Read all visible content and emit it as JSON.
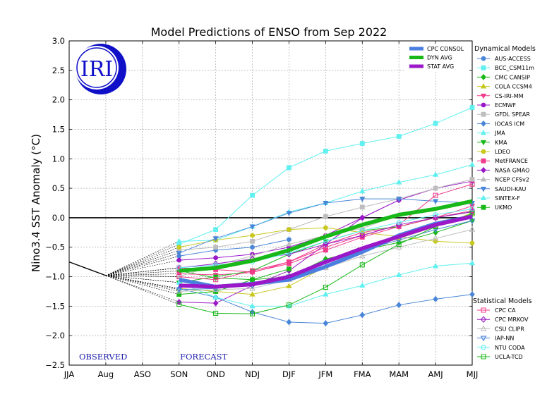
{
  "chart_data": {
    "type": "line",
    "title": "Model Predictions of ENSO from Sep 2022",
    "xlabel": "",
    "ylabel": "Nino3.4 SST Anomaly (°C)",
    "ylim": [
      -2.5,
      3.0
    ],
    "yticks": [
      "−2.5",
      "−2.0",
      "−1.5",
      "−1.0",
      "−0.5",
      "0.0",
      "0.5",
      "1.0",
      "1.5",
      "2.0",
      "2.5",
      "3.0"
    ],
    "categories": [
      "JJA",
      "Aug",
      "ASO",
      "SON",
      "OND",
      "NDJ",
      "DJF",
      "JFM",
      "FMA",
      "MAM",
      "AMJ",
      "MJJ"
    ],
    "grid": true,
    "annotations": {
      "observed": "OBSERVED",
      "forecast": "FORECAST"
    },
    "observed": {
      "x": [
        0,
        1
      ],
      "values": [
        -0.75,
        -0.98
      ]
    },
    "consensus_legend": [
      "CPC CONSOL",
      "DYN AVG",
      "STAT AVG"
    ],
    "dynamical_header": "Dynamical Models",
    "statistical_header": "Statistical Models",
    "consensus": [
      {
        "name": "CPC CONSOL",
        "color": "#4a7fe0",
        "values": [
          -1.05,
          -1.17,
          -1.12,
          -1.05,
          -0.83,
          -0.58,
          -0.3,
          -0.1,
          0.02
        ]
      },
      {
        "name": "DYN AVG",
        "color": "#18b818",
        "values": [
          -0.9,
          -0.85,
          -0.73,
          -0.55,
          -0.32,
          -0.12,
          0.05,
          0.15,
          0.28
        ]
      },
      {
        "name": "STAT AVG",
        "color": "#9a18c8",
        "values": [
          -1.15,
          -1.17,
          -1.13,
          -1.0,
          -0.75,
          -0.52,
          -0.32,
          -0.12,
          0.02
        ]
      }
    ],
    "dynamical": [
      {
        "name": "AUS-ACCESS",
        "color": "#4a86d8",
        "marker": "circle",
        "filled": true,
        "values": [
          -0.65,
          -0.55,
          -0.5,
          -0.37
        ]
      },
      {
        "name": "BCC_CSM11m",
        "color": "#60f0f0",
        "marker": "square",
        "filled": true,
        "values": [
          -0.45,
          -0.2,
          0.38,
          0.85,
          1.13,
          1.26,
          1.38,
          1.6,
          1.87
        ]
      },
      {
        "name": "CMC CANSIP",
        "color": "#18b818",
        "marker": "diamond",
        "filled": true,
        "values": [
          -0.9,
          -1.02,
          -1.05,
          -1.0,
          -0.7,
          -0.55,
          -0.42,
          -0.25,
          -0.05
        ]
      },
      {
        "name": "COLA CCSM4",
        "color": "#c8c820",
        "marker": "triangle-up",
        "filled": true,
        "values": [
          -1.2,
          -1.25,
          -1.3,
          -1.16,
          -0.83,
          -0.55,
          -0.35,
          -0.15,
          0.08
        ]
      },
      {
        "name": "CS-IRI-MM",
        "color": "#f03c8c",
        "marker": "triangle-down",
        "filled": true,
        "values": [
          -0.95,
          -0.97,
          -0.93,
          -0.75,
          -0.45,
          -0.25,
          -0.15,
          0.0,
          0.2
        ]
      },
      {
        "name": "ECMWF",
        "color": "#9a18c8",
        "marker": "circle",
        "filled": true,
        "values": [
          -0.72,
          -0.68,
          -0.62,
          -0.5,
          -0.3,
          0.0,
          0.3,
          0.5,
          0.62
        ]
      },
      {
        "name": "GFDL SPEAR",
        "color": "#bdbdbd",
        "marker": "square",
        "filled": true,
        "values": [
          -0.55,
          -0.5,
          -0.4,
          -0.2,
          0.02,
          0.18,
          0.32,
          0.5,
          0.65
        ]
      },
      {
        "name": "IOCAS ICM",
        "color": "#4a86d8",
        "marker": "diamond",
        "filled": true,
        "values": [
          -1.2,
          -1.35,
          -1.6,
          -1.77,
          -1.79,
          -1.65,
          -1.48,
          -1.38,
          -1.3
        ]
      },
      {
        "name": "JMA",
        "color": "#60f0f0",
        "marker": "triangle-up",
        "filled": true,
        "values": [
          -0.4,
          -0.38,
          -0.15,
          0.1,
          0.25,
          0.45,
          0.6,
          0.73,
          0.9
        ]
      },
      {
        "name": "KMA",
        "color": "#18b818",
        "marker": "triangle-down",
        "filled": true,
        "values": [
          -1.1,
          -1.0,
          -0.9,
          -0.62,
          -0.4,
          -0.22,
          -0.15,
          0.0,
          0.1
        ]
      },
      {
        "name": "LDEO",
        "color": "#c8c820",
        "marker": "circle",
        "filled": true,
        "values": [
          -0.5,
          -0.38,
          -0.3,
          -0.2,
          -0.17,
          -0.25,
          -0.32,
          -0.4,
          -0.43
        ]
      },
      {
        "name": "MetFRANCE",
        "color": "#f03c8c",
        "marker": "square",
        "filled": true,
        "values": [
          -0.85,
          -0.88,
          -0.92,
          -0.78,
          -0.55,
          -0.33,
          -0.15,
          0.0,
          0.12
        ]
      },
      {
        "name": "NASA GMAO",
        "color": "#9a18c8",
        "marker": "diamond",
        "filled": true,
        "values": [
          -1.43,
          -1.45,
          -1.15,
          -0.9,
          -0.45,
          0.0,
          0.3
        ]
      },
      {
        "name": "NCEP CFSv2",
        "color": "#bdbdbd",
        "marker": "triangle-up",
        "filled": true,
        "values": [
          -1.0,
          -0.8,
          -0.65,
          -0.45,
          -0.3,
          -0.18,
          0.05
        ]
      },
      {
        "name": "SAUDI-KAU",
        "color": "#4a86d8",
        "marker": "triangle-down",
        "filled": true,
        "values": [
          -0.6,
          -0.35,
          -0.15,
          0.08,
          0.25,
          0.32,
          0.32,
          0.28,
          0.25
        ]
      },
      {
        "name": "SINTEX-F",
        "color": "#60f0f0",
        "marker": "triangle-up",
        "filled": true,
        "values": [
          -1.1,
          -1.35,
          -1.5,
          -1.5,
          -1.3,
          -1.15,
          -0.97,
          -0.82,
          -0.77
        ]
      },
      {
        "name": "UKMO",
        "color": "#18b818",
        "marker": "square",
        "filled": true,
        "values": [
          -1.3,
          -1.25,
          -1.05,
          -0.87
        ]
      }
    ],
    "statistical": [
      {
        "name": "CPC CA",
        "color": "#f03c8c",
        "marker": "square",
        "filled": false,
        "values": [
          -1.0,
          -1.05,
          -0.9,
          -0.75,
          -0.5,
          -0.3,
          -0.12,
          0.38,
          0.57
        ]
      },
      {
        "name": "CPC MRKOV",
        "color": "#9a18c8",
        "marker": "diamond",
        "filled": false,
        "values": [
          -0.85,
          -0.78,
          -0.7,
          -0.62,
          -0.45,
          -0.3,
          -0.12,
          0.0,
          0.1
        ]
      },
      {
        "name": "CSU CLIPR",
        "color": "#bdbdbd",
        "marker": "triangle-up",
        "filled": false,
        "values": [
          -1.25,
          -1.22,
          -1.2,
          -1.05,
          -0.85,
          -0.65,
          -0.5,
          -0.35,
          -0.2
        ]
      },
      {
        "name": "IAP-NN",
        "color": "#4a86d8",
        "marker": "triangle-down",
        "filled": false,
        "values": [
          -1.22,
          -1.2,
          -1.15,
          -1.0,
          -0.75,
          -0.55,
          -0.38,
          -0.2,
          -0.05
        ]
      },
      {
        "name": "NTU CODA",
        "color": "#60f0f0",
        "marker": "circle",
        "filled": false,
        "values": [
          -0.85,
          -0.8,
          -0.75,
          -0.6,
          -0.4,
          -0.22,
          -0.08,
          0.05,
          0.15
        ]
      },
      {
        "name": "UCLA-TCD",
        "color": "#18b818",
        "marker": "square",
        "filled": false,
        "values": [
          -1.47,
          -1.62,
          -1.63,
          -1.48,
          -1.18,
          -0.8,
          -0.45,
          -0.15,
          0.07
        ]
      }
    ]
  }
}
